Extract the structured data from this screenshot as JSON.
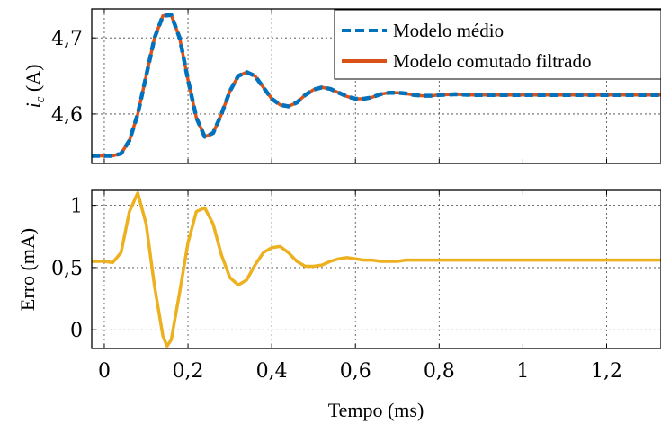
{
  "chart_data": [
    {
      "type": "line",
      "ylabel_main": "i",
      "ylabel_sub": "c",
      "ylabel_unit": " (A)",
      "xlim": [
        -0.03,
        1.33
      ],
      "ylim": [
        4.535,
        4.738
      ],
      "yticks": [
        4.6,
        4.7
      ],
      "ytick_labels": [
        "4,6",
        "4,7"
      ],
      "grid": true,
      "legend_position": "top-right",
      "series": [
        {
          "name": "Modelo médio",
          "color": "#0072bd",
          "dash": "dashed",
          "x": [
            -0.03,
            0.0,
            0.02,
            0.04,
            0.06,
            0.08,
            0.1,
            0.12,
            0.14,
            0.16,
            0.18,
            0.2,
            0.22,
            0.24,
            0.26,
            0.28,
            0.3,
            0.32,
            0.34,
            0.36,
            0.38,
            0.4,
            0.42,
            0.44,
            0.46,
            0.48,
            0.5,
            0.52,
            0.54,
            0.56,
            0.58,
            0.6,
            0.62,
            0.64,
            0.66,
            0.68,
            0.7,
            0.72,
            0.74,
            0.76,
            0.78,
            0.8,
            0.84,
            0.88,
            0.92,
            0.96,
            1.0,
            1.05,
            1.1,
            1.15,
            1.2,
            1.25,
            1.3,
            1.33
          ],
          "values": [
            4.545,
            4.545,
            4.545,
            4.548,
            4.565,
            4.6,
            4.65,
            4.7,
            4.729,
            4.73,
            4.7,
            4.645,
            4.595,
            4.57,
            4.575,
            4.6,
            4.63,
            4.65,
            4.655,
            4.65,
            4.635,
            4.62,
            4.612,
            4.61,
            4.615,
            4.625,
            4.632,
            4.635,
            4.633,
            4.628,
            4.623,
            4.62,
            4.62,
            4.622,
            4.626,
            4.628,
            4.628,
            4.627,
            4.625,
            4.624,
            4.624,
            4.625,
            4.626,
            4.625,
            4.625,
            4.625,
            4.625,
            4.625,
            4.625,
            4.625,
            4.625,
            4.625,
            4.625,
            4.625
          ]
        },
        {
          "name": "Modelo comutado filtrado",
          "color": "#d95319",
          "dash": "solid",
          "x": [
            -0.03,
            0.0,
            0.02,
            0.04,
            0.06,
            0.08,
            0.1,
            0.12,
            0.14,
            0.16,
            0.18,
            0.2,
            0.22,
            0.24,
            0.26,
            0.28,
            0.3,
            0.32,
            0.34,
            0.36,
            0.38,
            0.4,
            0.42,
            0.44,
            0.46,
            0.48,
            0.5,
            0.52,
            0.54,
            0.56,
            0.58,
            0.6,
            0.62,
            0.64,
            0.66,
            0.68,
            0.7,
            0.72,
            0.74,
            0.76,
            0.78,
            0.8,
            0.84,
            0.88,
            0.92,
            0.96,
            1.0,
            1.05,
            1.1,
            1.15,
            1.2,
            1.25,
            1.3,
            1.33
          ],
          "values": [
            4.545,
            4.545,
            4.545,
            4.548,
            4.565,
            4.6,
            4.65,
            4.7,
            4.729,
            4.73,
            4.7,
            4.645,
            4.595,
            4.57,
            4.575,
            4.6,
            4.63,
            4.65,
            4.655,
            4.65,
            4.635,
            4.62,
            4.612,
            4.61,
            4.615,
            4.625,
            4.632,
            4.635,
            4.633,
            4.628,
            4.623,
            4.62,
            4.62,
            4.622,
            4.626,
            4.628,
            4.628,
            4.627,
            4.625,
            4.624,
            4.624,
            4.625,
            4.626,
            4.625,
            4.625,
            4.625,
            4.625,
            4.625,
            4.625,
            4.625,
            4.625,
            4.625,
            4.625,
            4.625
          ]
        }
      ]
    },
    {
      "type": "line",
      "xlabel": "Tempo (ms)",
      "ylabel": "Erro (mA)",
      "xlim": [
        -0.03,
        1.33
      ],
      "ylim": [
        -0.15,
        1.12
      ],
      "xticks": [
        0,
        0.2,
        0.4,
        0.6,
        0.8,
        1,
        1.2
      ],
      "xtick_labels": [
        "0",
        "0,2",
        "0,4",
        "0,6",
        "0,8",
        "1",
        "1,2"
      ],
      "yticks": [
        0,
        0.5,
        1
      ],
      "ytick_labels": [
        "0",
        "0,5",
        "1"
      ],
      "grid": true,
      "series": [
        {
          "color": "#edb120",
          "dash": "solid",
          "x": [
            -0.03,
            0.0,
            0.02,
            0.04,
            0.06,
            0.08,
            0.1,
            0.12,
            0.14,
            0.15,
            0.16,
            0.18,
            0.2,
            0.22,
            0.24,
            0.26,
            0.28,
            0.3,
            0.32,
            0.34,
            0.36,
            0.38,
            0.4,
            0.42,
            0.44,
            0.46,
            0.48,
            0.5,
            0.52,
            0.54,
            0.56,
            0.58,
            0.6,
            0.62,
            0.64,
            0.66,
            0.68,
            0.7,
            0.72,
            0.74,
            0.76,
            0.78,
            0.8,
            0.84,
            0.88,
            0.92,
            0.96,
            1.0,
            1.05,
            1.1,
            1.15,
            1.2,
            1.25,
            1.3,
            1.33
          ],
          "values": [
            0.55,
            0.55,
            0.54,
            0.62,
            0.95,
            1.1,
            0.85,
            0.35,
            -0.05,
            -0.13,
            -0.08,
            0.3,
            0.7,
            0.95,
            0.98,
            0.85,
            0.6,
            0.42,
            0.36,
            0.4,
            0.52,
            0.62,
            0.66,
            0.67,
            0.62,
            0.55,
            0.51,
            0.51,
            0.52,
            0.55,
            0.57,
            0.58,
            0.57,
            0.56,
            0.56,
            0.55,
            0.55,
            0.55,
            0.56,
            0.56,
            0.56,
            0.56,
            0.56,
            0.56,
            0.56,
            0.56,
            0.56,
            0.56,
            0.56,
            0.56,
            0.56,
            0.56,
            0.56,
            0.56,
            0.56
          ]
        }
      ]
    }
  ]
}
